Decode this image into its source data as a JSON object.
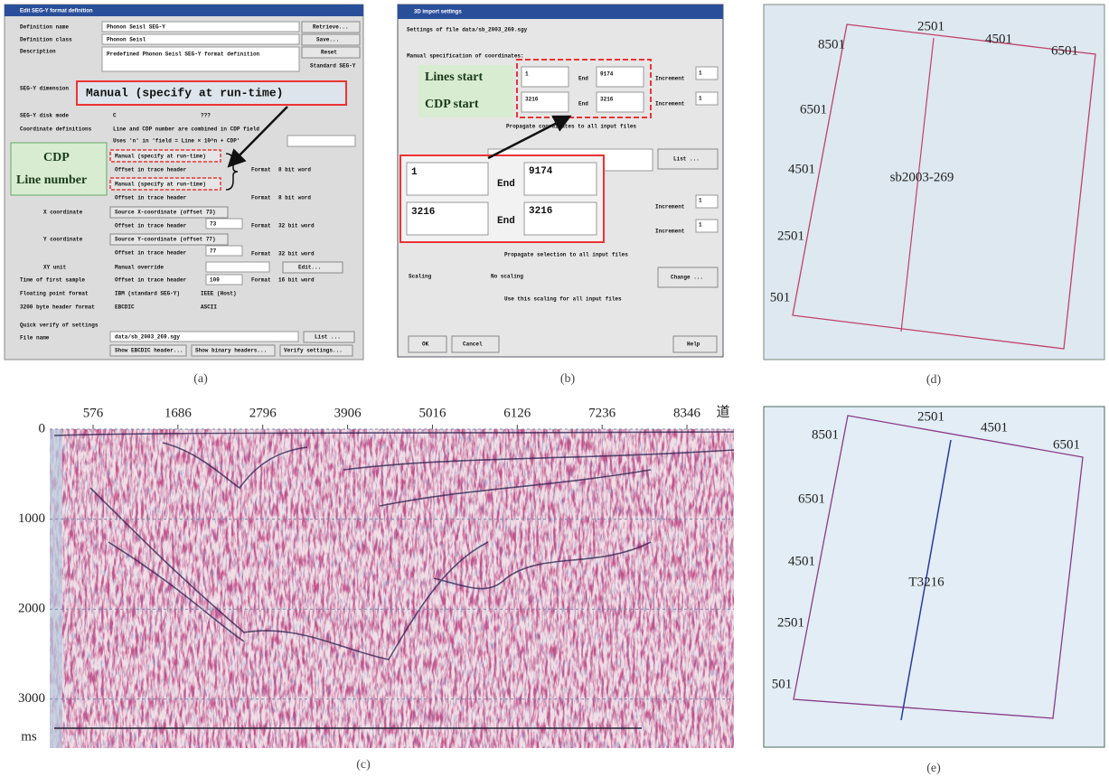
{
  "panel_a": {
    "caption": "(a)",
    "items": [
      "Edit SEG-Y format definition",
      "Definition name",
      "Phonon Seisl SEG-Y",
      "Retrieve...",
      "Definition class",
      "Phonon Seisl",
      "Save...",
      "Description",
      "Predefined Phonon Seisl SEG-Y format definition",
      "Reset",
      "Standard SEG-Y",
      "SEG-Y dimension",
      "Manual (specify at run-time)",
      "SEG-Y disk mode",
      "C",
      "???",
      "Coordinate definitions",
      "Line and CDP number are combined in CDP field",
      "Uses 'n' in 'field = Line × 10^n + CDP'",
      "CDP",
      "Line number",
      "Manual (specify at run-time)",
      "Offset in trace header",
      "Format",
      "8 bit word",
      "Manual (specify at run-time)",
      "Offset in trace header",
      "Format",
      "8 bit word",
      "X coordinate",
      "Source X-coordinate (offset 73)",
      "Offset in trace header",
      "73",
      "Format",
      "32 bit word",
      "Y coordinate",
      "Source Y-coordinate (offset 77)",
      "Offset in trace header",
      "77",
      "Format",
      "32 bit word",
      "XY unit",
      "Manual override",
      "Edit...",
      "Time of first sample",
      "Offset in trace header",
      "109",
      "Format",
      "16 bit word",
      "Floating point format",
      "IBM (standard SEG-Y)",
      "IEEE (Host)",
      "3200 byte header format",
      "EBCDIC",
      "ASCII",
      "Quick verify of settings",
      "File name",
      "data/sb_2003_269.sgy",
      "List ...",
      "Show EBCDIC header...",
      "Show binary headers...",
      "Verify settings..."
    ]
  },
  "panel_b": {
    "caption": "(b)",
    "items": [
      "3D import settings",
      "Settings of file data/sb_2003_269.sgy",
      "Manual specification of coordinates:",
      "Lines start",
      "CDP start",
      "1",
      "End",
      "9174",
      "Increment",
      "1",
      "3216",
      "End",
      "3216",
      "Increment",
      "1",
      "Propagate coordinates to all input files",
      "List ...",
      "1",
      "End",
      "9174",
      "3216",
      "End",
      "3216",
      "Increment",
      "1",
      "Increment",
      "1",
      "Propagate selection to all input files",
      "Scaling",
      "No scaling",
      "Change ...",
      "Use this scaling for all input files",
      "OK",
      "Cancel",
      "Help"
    ]
  },
  "panel_c": {
    "caption": "(c)",
    "trace_ticks": [
      576,
      1686,
      2796,
      3906,
      5016,
      6126,
      7236,
      8346
    ],
    "trace_unit": "道",
    "time_ticks": [
      0,
      1000,
      2000,
      3000
    ],
    "time_unit": "ms"
  },
  "panel_d": {
    "caption": "(d)",
    "labels": [
      "8501",
      "2501",
      "4501",
      "6501",
      "6501",
      "4501",
      "2501",
      "501",
      "sb2003-269"
    ]
  },
  "panel_e": {
    "caption": "(e)",
    "labels": [
      "8501",
      "2501",
      "4501",
      "6501",
      "6501",
      "4501",
      "2501",
      "501",
      "T3216"
    ]
  }
}
